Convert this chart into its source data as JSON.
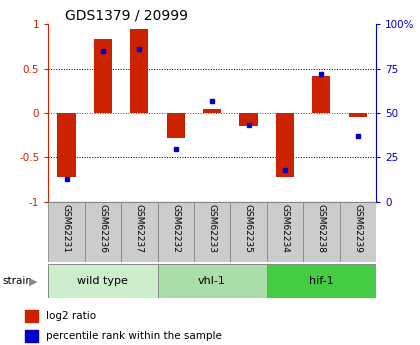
{
  "title": "GDS1379 / 20999",
  "samples": [
    "GSM62231",
    "GSM62236",
    "GSM62237",
    "GSM62232",
    "GSM62233",
    "GSM62235",
    "GSM62234",
    "GSM62238",
    "GSM62239"
  ],
  "log2_ratio": [
    -0.72,
    0.83,
    0.95,
    -0.28,
    0.05,
    -0.15,
    -0.72,
    0.42,
    -0.05
  ],
  "percentile_rank": [
    13,
    85,
    86,
    30,
    57,
    43,
    18,
    72,
    37
  ],
  "groups": [
    {
      "label": "wild type",
      "indices": [
        0,
        1,
        2
      ],
      "color": "#cceecc"
    },
    {
      "label": "vhl-1",
      "indices": [
        3,
        4,
        5
      ],
      "color": "#aaddaa"
    },
    {
      "label": "hif-1",
      "indices": [
        6,
        7,
        8
      ],
      "color": "#44cc44"
    }
  ],
  "bar_color_red": "#cc2200",
  "dot_color_blue": "#0000cc",
  "left_axis_color": "#cc2200",
  "right_axis_color": "#0000cc",
  "ylim_left": [
    -1,
    1
  ],
  "ylim_right": [
    0,
    100
  ],
  "yticks_left": [
    -1,
    -0.5,
    0,
    0.5,
    1
  ],
  "yticks_right": [
    0,
    25,
    50,
    75,
    100
  ],
  "ytick_labels_left": [
    "-1",
    "-0.5",
    "0",
    "0.5",
    "1"
  ],
  "ytick_labels_right": [
    "0",
    "25",
    "50",
    "75",
    "100%"
  ],
  "legend_items": [
    {
      "label": "log2 ratio",
      "color": "#cc2200"
    },
    {
      "label": "percentile rank within the sample",
      "color": "#0000cc"
    }
  ],
  "strain_label": "strain",
  "background_color": "#ffffff",
  "bar_width": 0.5,
  "sample_box_color": "#cccccc",
  "sample_box_edge": "#888888"
}
